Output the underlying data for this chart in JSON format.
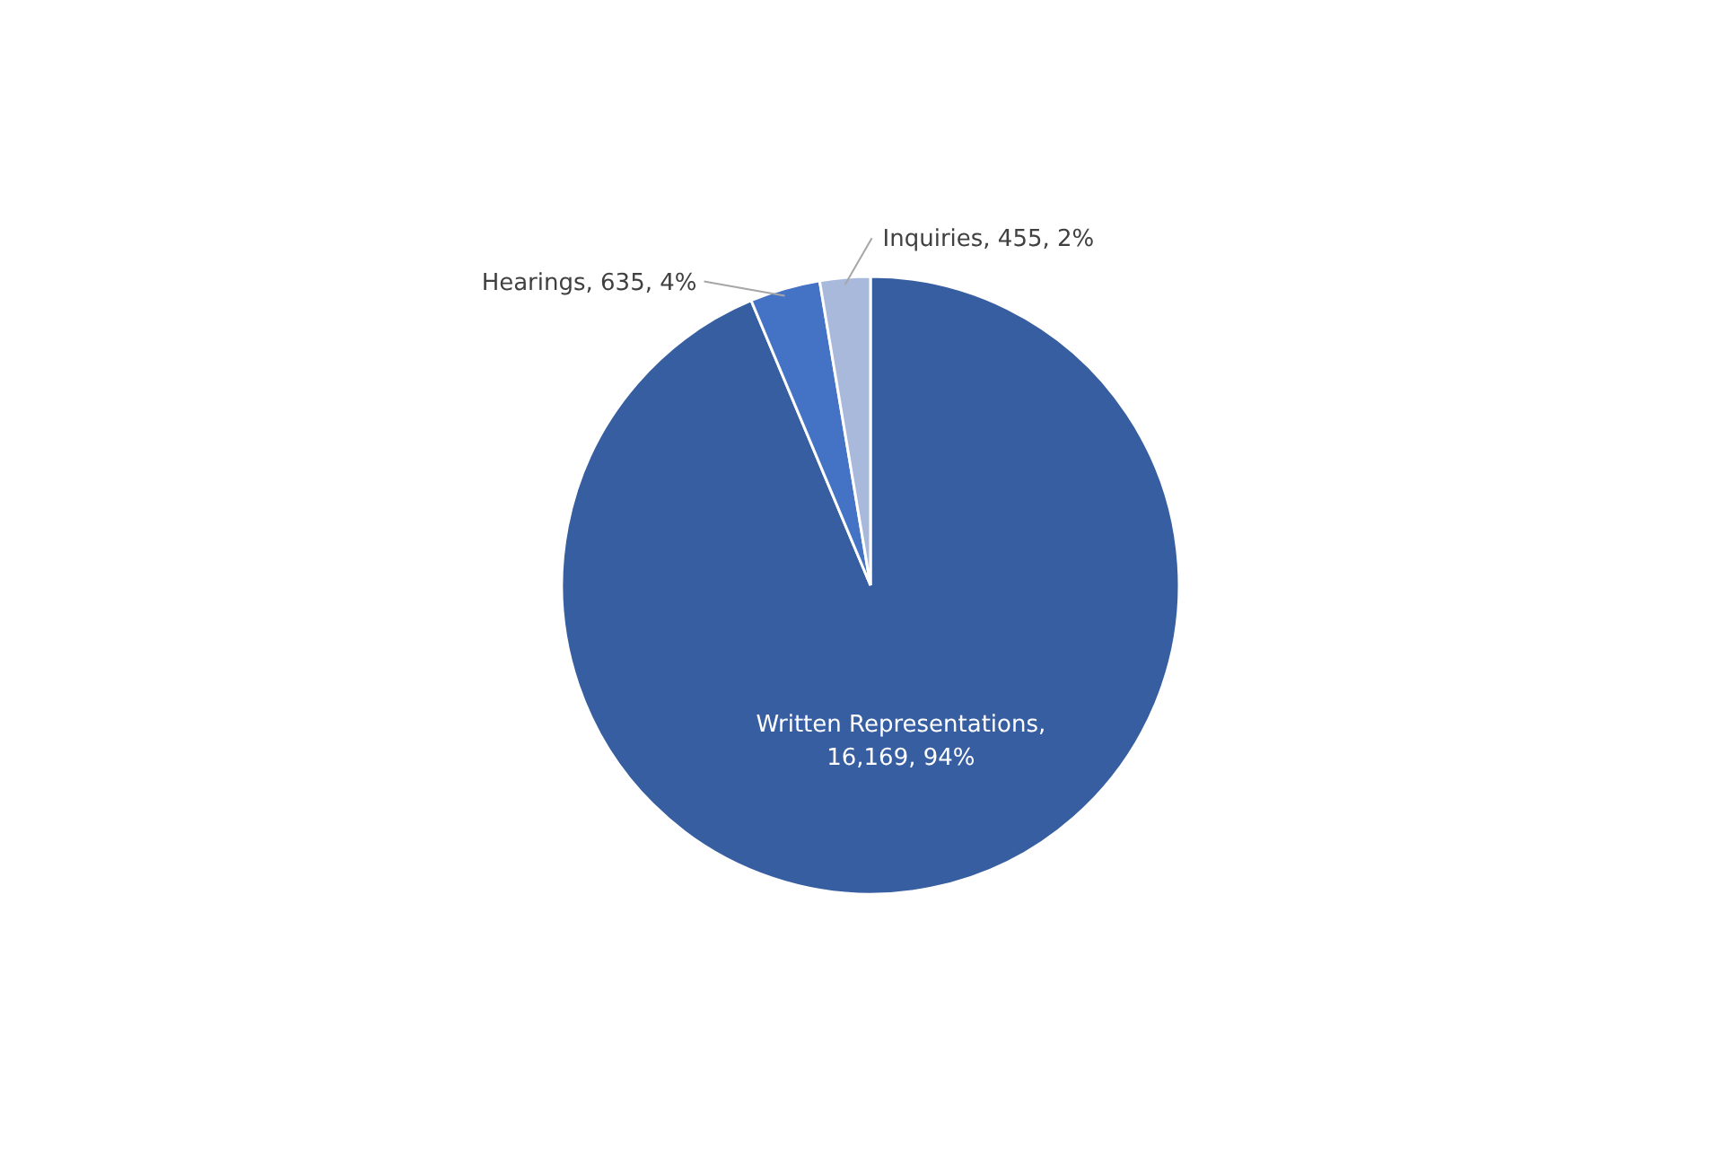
{
  "chart_data": {
    "type": "pie",
    "categories": [
      "Written Representations",
      "Hearings",
      "Inquiries"
    ],
    "values": [
      16169,
      635,
      455
    ],
    "value_labels": [
      ",\n16,169,  94%",
      ", 635, 4%",
      ", 455, 2%"
    ],
    "colors": [
      "#365ea0",
      "#4472c4",
      "#a9b9dc"
    ],
    "legend": false
  }
}
